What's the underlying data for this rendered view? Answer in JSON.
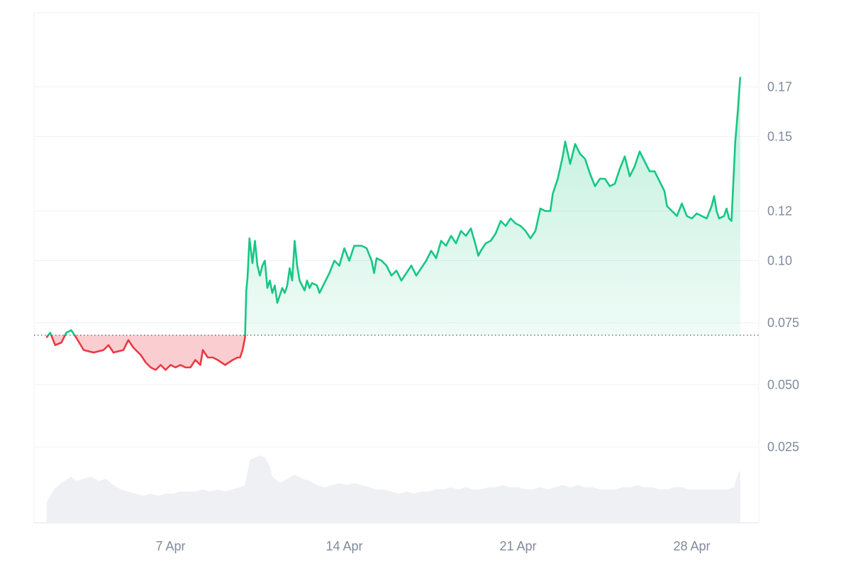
{
  "chart_data": {
    "type": "area",
    "baseline": 0.07,
    "y_ticks": [
      "0.025",
      "0.050",
      "0.075",
      "0.10",
      "0.12",
      "0.15",
      "0.17"
    ],
    "x_ticks": [
      "7 Apr",
      "14 Apr",
      "21 Apr",
      "28 Apr"
    ],
    "colors": {
      "up": "#16c784",
      "down": "#ea3943",
      "grid": "#eff2f5",
      "volume": "#eef0f3",
      "axis_text": "#808a9d"
    },
    "series": [
      {
        "values": [
          [
            0.0,
            0.069
          ],
          [
            0.15,
            0.071
          ],
          [
            0.35,
            0.066
          ],
          [
            0.6,
            0.067
          ],
          [
            0.8,
            0.071
          ],
          [
            1.0,
            0.072
          ],
          [
            1.2,
            0.069
          ],
          [
            1.5,
            0.064
          ],
          [
            1.9,
            0.063
          ],
          [
            2.3,
            0.064
          ],
          [
            2.5,
            0.066
          ],
          [
            2.7,
            0.063
          ],
          [
            3.1,
            0.064
          ],
          [
            3.3,
            0.068
          ],
          [
            3.5,
            0.065
          ],
          [
            3.8,
            0.062
          ],
          [
            4.0,
            0.059
          ],
          [
            4.2,
            0.057
          ],
          [
            4.4,
            0.056
          ],
          [
            4.6,
            0.058
          ],
          [
            4.8,
            0.056
          ],
          [
            5.0,
            0.058
          ],
          [
            5.2,
            0.057
          ],
          [
            5.4,
            0.058
          ],
          [
            5.6,
            0.057
          ],
          [
            5.8,
            0.057
          ],
          [
            6.0,
            0.06
          ],
          [
            6.2,
            0.058
          ],
          [
            6.3,
            0.064
          ],
          [
            6.5,
            0.061
          ],
          [
            6.7,
            0.061
          ],
          [
            6.9,
            0.06
          ],
          [
            7.2,
            0.058
          ],
          [
            7.5,
            0.06
          ],
          [
            7.7,
            0.061
          ],
          [
            7.8,
            0.061
          ],
          [
            7.9,
            0.064
          ],
          [
            8.0,
            0.069
          ],
          [
            8.05,
            0.088
          ],
          [
            8.1,
            0.093
          ],
          [
            8.18,
            0.109
          ],
          [
            8.3,
            0.099
          ],
          [
            8.4,
            0.108
          ],
          [
            8.5,
            0.098
          ],
          [
            8.6,
            0.094
          ],
          [
            8.7,
            0.098
          ],
          [
            8.8,
            0.1
          ],
          [
            8.9,
            0.089
          ],
          [
            9.0,
            0.092
          ],
          [
            9.1,
            0.087
          ],
          [
            9.2,
            0.09
          ],
          [
            9.3,
            0.083
          ],
          [
            9.4,
            0.086
          ],
          [
            9.5,
            0.089
          ],
          [
            9.6,
            0.087
          ],
          [
            9.7,
            0.09
          ],
          [
            9.8,
            0.097
          ],
          [
            9.9,
            0.092
          ],
          [
            10.0,
            0.108
          ],
          [
            10.1,
            0.098
          ],
          [
            10.2,
            0.092
          ],
          [
            10.3,
            0.09
          ],
          [
            10.4,
            0.088
          ],
          [
            10.5,
            0.092
          ],
          [
            10.6,
            0.089
          ],
          [
            10.7,
            0.091
          ],
          [
            10.9,
            0.09
          ],
          [
            11.0,
            0.087
          ],
          [
            11.2,
            0.091
          ],
          [
            11.4,
            0.095
          ],
          [
            11.6,
            0.1
          ],
          [
            11.8,
            0.098
          ],
          [
            12.0,
            0.105
          ],
          [
            12.2,
            0.1
          ],
          [
            12.4,
            0.106
          ],
          [
            12.7,
            0.106
          ],
          [
            12.9,
            0.105
          ],
          [
            13.1,
            0.1
          ],
          [
            13.2,
            0.095
          ],
          [
            13.3,
            0.101
          ],
          [
            13.5,
            0.1
          ],
          [
            13.7,
            0.098
          ],
          [
            13.9,
            0.094
          ],
          [
            14.1,
            0.096
          ],
          [
            14.3,
            0.092
          ],
          [
            14.5,
            0.095
          ],
          [
            14.7,
            0.098
          ],
          [
            14.9,
            0.094
          ],
          [
            15.1,
            0.097
          ],
          [
            15.3,
            0.1
          ],
          [
            15.5,
            0.104
          ],
          [
            15.7,
            0.101
          ],
          [
            15.9,
            0.108
          ],
          [
            16.1,
            0.106
          ],
          [
            16.3,
            0.11
          ],
          [
            16.5,
            0.107
          ],
          [
            16.7,
            0.112
          ],
          [
            16.9,
            0.11
          ],
          [
            17.1,
            0.113
          ],
          [
            17.3,
            0.106
          ],
          [
            17.4,
            0.102
          ],
          [
            17.5,
            0.104
          ],
          [
            17.7,
            0.107
          ],
          [
            17.9,
            0.108
          ],
          [
            18.1,
            0.111
          ],
          [
            18.3,
            0.116
          ],
          [
            18.5,
            0.114
          ],
          [
            18.7,
            0.117
          ],
          [
            18.9,
            0.115
          ],
          [
            19.1,
            0.114
          ],
          [
            19.3,
            0.112
          ],
          [
            19.5,
            0.109
          ],
          [
            19.7,
            0.112
          ],
          [
            19.9,
            0.121
          ],
          [
            20.1,
            0.12
          ],
          [
            20.3,
            0.12
          ],
          [
            20.4,
            0.127
          ],
          [
            20.6,
            0.133
          ],
          [
            20.8,
            0.142
          ],
          [
            20.9,
            0.148
          ],
          [
            21.1,
            0.139
          ],
          [
            21.3,
            0.147
          ],
          [
            21.5,
            0.143
          ],
          [
            21.7,
            0.141
          ],
          [
            21.9,
            0.135
          ],
          [
            22.1,
            0.13
          ],
          [
            22.3,
            0.133
          ],
          [
            22.5,
            0.133
          ],
          [
            22.7,
            0.13
          ],
          [
            22.9,
            0.131
          ],
          [
            23.1,
            0.137
          ],
          [
            23.3,
            0.142
          ],
          [
            23.5,
            0.134
          ],
          [
            23.7,
            0.138
          ],
          [
            23.9,
            0.144
          ],
          [
            24.1,
            0.14
          ],
          [
            24.3,
            0.136
          ],
          [
            24.5,
            0.136
          ],
          [
            24.7,
            0.132
          ],
          [
            24.9,
            0.128
          ],
          [
            25.0,
            0.122
          ],
          [
            25.2,
            0.12
          ],
          [
            25.4,
            0.118
          ],
          [
            25.6,
            0.123
          ],
          [
            25.8,
            0.118
          ],
          [
            26.0,
            0.117
          ],
          [
            26.2,
            0.119
          ],
          [
            26.4,
            0.118
          ],
          [
            26.6,
            0.117
          ],
          [
            26.8,
            0.122
          ],
          [
            26.9,
            0.126
          ],
          [
            27.0,
            0.12
          ],
          [
            27.1,
            0.117
          ],
          [
            27.3,
            0.118
          ],
          [
            27.4,
            0.121
          ],
          [
            27.5,
            0.117
          ],
          [
            27.6,
            0.116
          ],
          [
            27.75,
            0.148
          ],
          [
            27.85,
            0.16
          ],
          [
            27.95,
            0.174
          ]
        ]
      }
    ],
    "volume": [
      [
        0.0,
        0.0
      ],
      [
        0.3,
        0.006
      ],
      [
        0.6,
        0.009
      ],
      [
        1.0,
        0.012
      ],
      [
        1.2,
        0.01
      ],
      [
        1.5,
        0.011
      ],
      [
        1.8,
        0.012
      ],
      [
        2.1,
        0.01
      ],
      [
        2.4,
        0.011
      ],
      [
        2.7,
        0.008
      ],
      [
        3.0,
        0.006
      ],
      [
        3.3,
        0.005
      ],
      [
        3.6,
        0.004
      ],
      [
        3.9,
        0.003
      ],
      [
        4.2,
        0.004
      ],
      [
        4.5,
        0.003
      ],
      [
        4.8,
        0.004
      ],
      [
        5.1,
        0.004
      ],
      [
        5.4,
        0.005
      ],
      [
        5.7,
        0.005
      ],
      [
        6.0,
        0.005
      ],
      [
        6.3,
        0.006
      ],
      [
        6.6,
        0.005
      ],
      [
        6.9,
        0.006
      ],
      [
        7.2,
        0.005
      ],
      [
        7.5,
        0.006
      ],
      [
        7.8,
        0.007
      ],
      [
        8.0,
        0.008
      ],
      [
        8.2,
        0.02
      ],
      [
        8.4,
        0.021
      ],
      [
        8.6,
        0.022
      ],
      [
        8.8,
        0.021
      ],
      [
        9.0,
        0.017
      ],
      [
        9.1,
        0.012
      ],
      [
        9.4,
        0.009
      ],
      [
        9.7,
        0.011
      ],
      [
        10.0,
        0.013
      ],
      [
        10.3,
        0.011
      ],
      [
        10.6,
        0.01
      ],
      [
        10.9,
        0.008
      ],
      [
        11.2,
        0.007
      ],
      [
        11.5,
        0.008
      ],
      [
        11.8,
        0.009
      ],
      [
        12.1,
        0.008
      ],
      [
        12.4,
        0.009
      ],
      [
        12.7,
        0.008
      ],
      [
        13.0,
        0.007
      ],
      [
        13.3,
        0.006
      ],
      [
        13.6,
        0.006
      ],
      [
        13.9,
        0.005
      ],
      [
        14.2,
        0.004
      ],
      [
        14.5,
        0.005
      ],
      [
        14.8,
        0.004
      ],
      [
        15.1,
        0.005
      ],
      [
        15.4,
        0.005
      ],
      [
        15.7,
        0.006
      ],
      [
        16.0,
        0.006
      ],
      [
        16.3,
        0.007
      ],
      [
        16.6,
        0.006
      ],
      [
        16.9,
        0.007
      ],
      [
        17.2,
        0.006
      ],
      [
        17.5,
        0.006
      ],
      [
        17.8,
        0.007
      ],
      [
        18.1,
        0.007
      ],
      [
        18.4,
        0.008
      ],
      [
        18.7,
        0.007
      ],
      [
        19.0,
        0.007
      ],
      [
        19.3,
        0.006
      ],
      [
        19.6,
        0.006
      ],
      [
        19.9,
        0.007
      ],
      [
        20.2,
        0.006
      ],
      [
        20.5,
        0.007
      ],
      [
        20.8,
        0.008
      ],
      [
        21.1,
        0.007
      ],
      [
        21.4,
        0.008
      ],
      [
        21.7,
        0.007
      ],
      [
        22.0,
        0.007
      ],
      [
        22.3,
        0.006
      ],
      [
        22.6,
        0.006
      ],
      [
        22.9,
        0.006
      ],
      [
        23.2,
        0.007
      ],
      [
        23.5,
        0.007
      ],
      [
        23.8,
        0.008
      ],
      [
        24.1,
        0.007
      ],
      [
        24.4,
        0.007
      ],
      [
        24.7,
        0.006
      ],
      [
        25.0,
        0.006
      ],
      [
        25.3,
        0.007
      ],
      [
        25.6,
        0.007
      ],
      [
        25.9,
        0.006
      ],
      [
        26.2,
        0.006
      ],
      [
        26.5,
        0.006
      ],
      [
        26.8,
        0.006
      ],
      [
        27.1,
        0.006
      ],
      [
        27.4,
        0.006
      ],
      [
        27.7,
        0.007
      ],
      [
        27.85,
        0.013
      ],
      [
        27.95,
        0.015
      ]
    ]
  }
}
